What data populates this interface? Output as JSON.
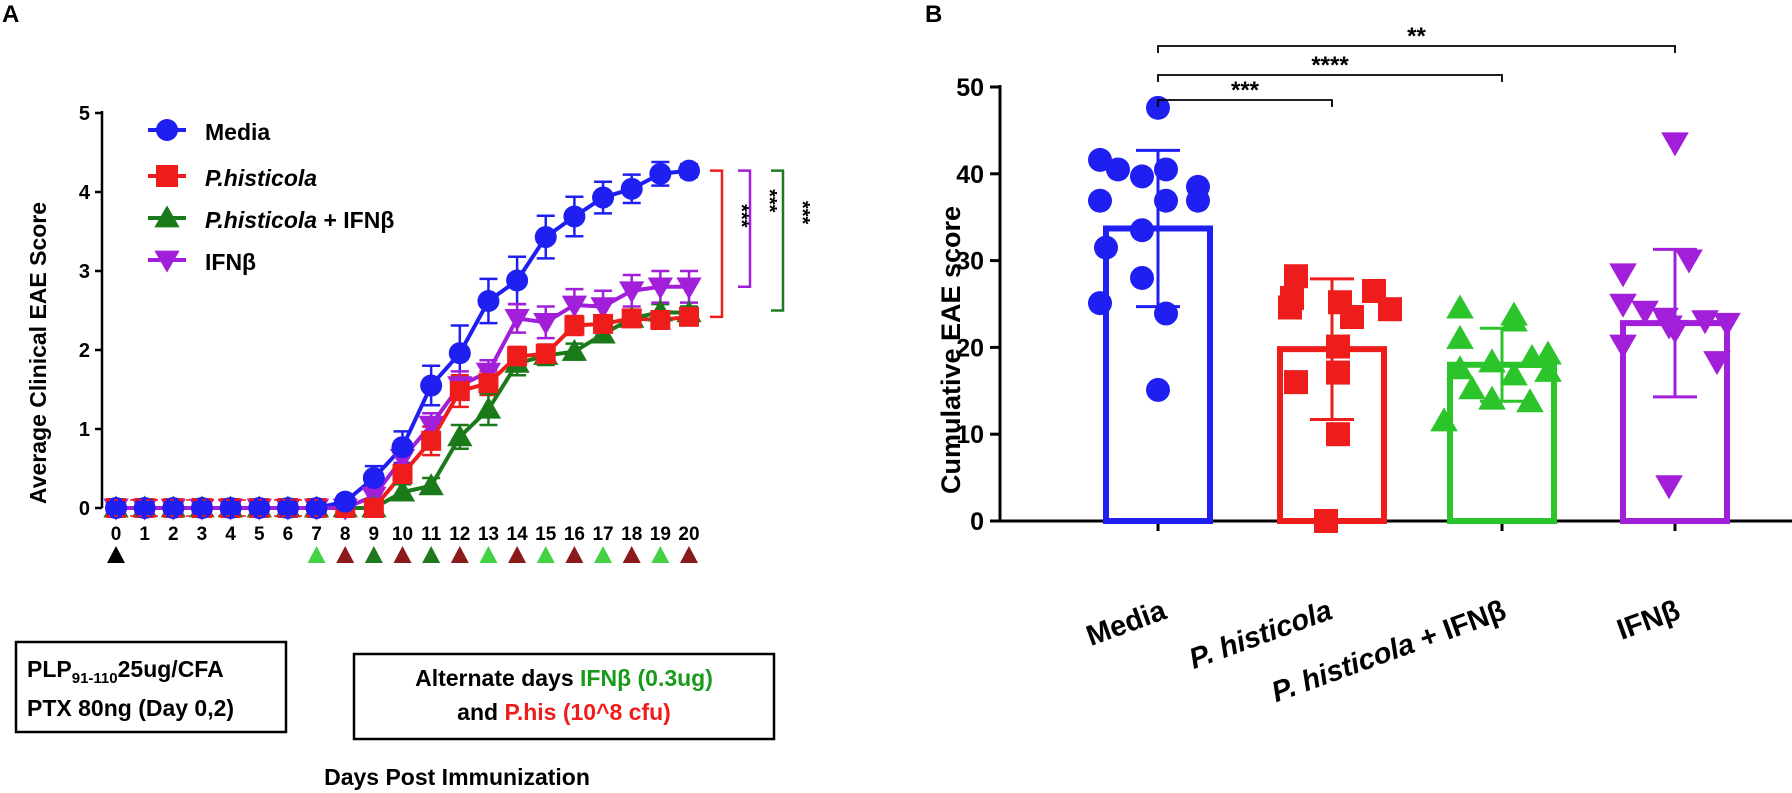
{
  "colors": {
    "media": "#1f1ff2",
    "phis": "#ef1c1c",
    "combo_line": "#1a7a1a",
    "combo_bar": "#2bc42b",
    "ifnb": "#a21fd9",
    "black": "#000000",
    "darkred": "#8b1a1a",
    "lightgreen": "#44d244",
    "darkgreen": "#1f7a1f"
  },
  "chart_data": [
    {
      "panel": "A",
      "type": "line",
      "xlabel": "Days Post Immunization",
      "ylabel": "Average Clinical EAE Score",
      "x": [
        0,
        1,
        2,
        3,
        4,
        5,
        6,
        7,
        8,
        9,
        10,
        11,
        12,
        13,
        14,
        15,
        16,
        17,
        18,
        19,
        20
      ],
      "x_ticks": [
        "0",
        "1",
        "2",
        "3",
        "4",
        "5",
        "6",
        "7",
        "8",
        "9",
        "10",
        "11",
        "12",
        "13",
        "14",
        "15",
        "16",
        "17",
        "18",
        "19",
        "20"
      ],
      "ylim": [
        0,
        5
      ],
      "y_ticks": [
        "0",
        "1",
        "2",
        "3",
        "4",
        "5"
      ],
      "series": [
        {
          "name": "Media",
          "marker": "circle",
          "color": "#1f1ff2",
          "values": [
            0,
            0,
            0,
            0,
            0,
            0,
            0,
            0,
            0.08,
            0.38,
            0.77,
            1.55,
            1.96,
            2.62,
            2.88,
            3.43,
            3.69,
            3.93,
            4.04,
            4.23,
            4.27
          ],
          "errors": [
            0,
            0,
            0,
            0,
            0,
            0,
            0,
            0,
            0.06,
            0.15,
            0.2,
            0.25,
            0.35,
            0.28,
            0.3,
            0.27,
            0.25,
            0.2,
            0.18,
            0.15,
            0.08
          ]
        },
        {
          "name": "P.histicola",
          "marker": "square",
          "color": "#ef1c1c",
          "values": [
            0,
            0,
            0,
            0,
            0,
            0,
            0,
            0,
            0,
            0,
            0.43,
            0.85,
            1.48,
            1.58,
            1.92,
            1.95,
            2.31,
            2.33,
            2.4,
            2.38,
            2.42
          ],
          "errors": [
            0,
            0,
            0,
            0,
            0,
            0,
            0,
            0,
            0,
            0,
            0.12,
            0.18,
            0.2,
            0.15,
            0.12,
            0.12,
            0.12,
            0.1,
            0.1,
            0.1,
            0.1
          ]
        },
        {
          "name": "P.histicola + IFNβ",
          "marker": "triangle-up",
          "color": "#1a7a1a",
          "values": [
            0,
            0,
            0,
            0,
            0,
            0,
            0,
            0,
            0,
            0,
            0.2,
            0.28,
            0.9,
            1.25,
            1.83,
            1.93,
            1.98,
            2.2,
            2.4,
            2.48,
            2.47
          ],
          "errors": [
            0,
            0,
            0,
            0,
            0,
            0,
            0,
            0,
            0,
            0,
            0.1,
            0.1,
            0.15,
            0.2,
            0.15,
            0.12,
            0.1,
            0.1,
            0.1,
            0.1,
            0.08
          ]
        },
        {
          "name": "IFNβ",
          "marker": "triangle-down",
          "color": "#a21fd9",
          "values": [
            0,
            0,
            0,
            0,
            0,
            0,
            0,
            0,
            0,
            0.15,
            0.63,
            1.05,
            1.55,
            1.72,
            2.4,
            2.35,
            2.57,
            2.55,
            2.75,
            2.8,
            2.8
          ],
          "errors": [
            0,
            0,
            0,
            0,
            0,
            0,
            0,
            0,
            0,
            0.08,
            0.15,
            0.15,
            0.18,
            0.15,
            0.18,
            0.2,
            0.2,
            0.2,
            0.2,
            0.2,
            0.2
          ]
        }
      ],
      "significance": [
        {
          "label": "***",
          "compare": "Media vs P.histicola"
        },
        {
          "label": "***",
          "compare": "Media vs IFNβ"
        },
        {
          "label": "***",
          "compare": "Media vs P.histicola + IFNβ"
        }
      ],
      "arrow_marker_days": [
        0,
        7,
        8,
        9,
        10,
        11,
        12,
        13,
        14,
        15,
        16,
        17,
        18,
        19,
        20
      ]
    },
    {
      "panel": "B",
      "type": "bar",
      "ylabel": "Cumulative EAE score",
      "ylim": [
        0,
        50
      ],
      "y_ticks": [
        "0",
        "10",
        "20",
        "30",
        "40",
        "50"
      ],
      "categories": [
        "Media",
        "P. histicola",
        "P. histicola + IFNβ",
        "IFNβ"
      ],
      "series": [
        {
          "name": "Media",
          "marker": "circle",
          "color": "#1f1ff2",
          "mean": 33.7,
          "sd": 9.0,
          "points": [
            47.6,
            41.6,
            40.5,
            39.7,
            40.5,
            38.5,
            36.9,
            36.9,
            36.9,
            33.5,
            31.5,
            28.0,
            25.1,
            23.9,
            15.1
          ]
        },
        {
          "name": "P. histicola",
          "marker": "square",
          "color": "#ef1c1c",
          "mean": 19.8,
          "sd": 8.1,
          "points": [
            28.2,
            26.5,
            25.7,
            25.2,
            24.6,
            24.4,
            23.5,
            20.1,
            17.1,
            16.0,
            10.0,
            0.0
          ]
        },
        {
          "name": "P. histicola + IFNβ",
          "marker": "triangle-up",
          "color": "#2bc42b",
          "mean": 18.0,
          "sd": 4.2,
          "points": [
            24.5,
            23.7,
            23.0,
            21.0,
            19.2,
            18.8,
            18.3,
            17.5,
            17.2,
            16.8,
            15.2,
            14.0,
            13.7,
            11.5
          ]
        },
        {
          "name": "IFNβ",
          "marker": "triangle-down",
          "color": "#a21fd9",
          "mean": 22.8,
          "sd": 8.5,
          "points": [
            43.6,
            30.1,
            28.5,
            25.0,
            24.2,
            23.4,
            23.1,
            22.8,
            22.5,
            22.0,
            20.3,
            18.4,
            4.1
          ]
        }
      ],
      "significance": [
        {
          "label": "***",
          "compare": "Media vs P. histicola"
        },
        {
          "label": "****",
          "compare": "Media vs P. histicola + IFNβ"
        },
        {
          "label": "**",
          "compare": "Media vs IFNβ"
        }
      ]
    }
  ],
  "panelA": {
    "letter": "A",
    "legend": [
      {
        "label": "Media",
        "italic": "",
        "suffix": ""
      },
      {
        "label": "",
        "italic": "P.histicola",
        "suffix": ""
      },
      {
        "label": "",
        "italic": "P.histicola",
        "suffix": " + IFNβ"
      },
      {
        "label": "IFNβ",
        "italic": "",
        "suffix": ""
      }
    ],
    "box1": {
      "line1_a": "PLP",
      "line1_sub": "91-110",
      "line1_b": "25ug/CFA",
      "line2": "PTX 80ng (Day 0,2)"
    },
    "box2": {
      "l1_a": "Alternate days ",
      "l1_b": "IFNβ (0.3ug)",
      "l2_a": "and ",
      "l2_b": "P.his (10^8 cfu)"
    }
  },
  "panelB": {
    "letter": "B"
  }
}
